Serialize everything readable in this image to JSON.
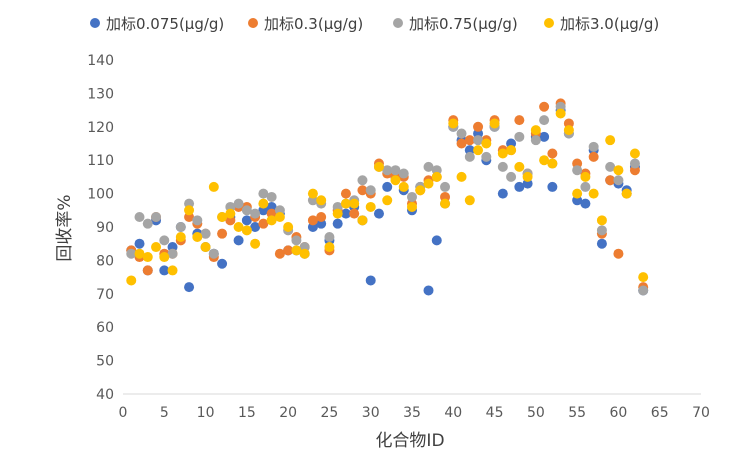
{
  "chart_data": {
    "type": "scatter",
    "title": "",
    "xlabel": "化合物ID",
    "ylabel": "回收率%",
    "xlim": [
      0,
      70
    ],
    "ylim": [
      40,
      140
    ],
    "xticks": [
      0,
      5,
      10,
      15,
      20,
      25,
      30,
      35,
      40,
      45,
      50,
      55,
      60,
      65,
      70
    ],
    "yticks": [
      40,
      50,
      60,
      70,
      80,
      90,
      100,
      110,
      120,
      130,
      140
    ],
    "grid": false,
    "legend_position": "top",
    "series": [
      {
        "name": "加标0.075(μg/g)",
        "color": "#4472C4",
        "x": [
          1,
          2,
          3,
          4,
          5,
          6,
          7,
          8,
          9,
          10,
          11,
          12,
          13,
          14,
          15,
          16,
          17,
          18,
          19,
          20,
          21,
          22,
          23,
          24,
          25,
          26,
          27,
          28,
          29,
          30,
          31,
          32,
          33,
          34,
          35,
          36,
          37,
          38,
          39,
          40,
          41,
          42,
          43,
          44,
          45,
          46,
          47,
          48,
          49,
          50,
          51,
          52,
          53,
          54,
          55,
          56,
          57,
          58,
          59,
          60,
          61,
          62,
          63
        ],
        "y": [
          83,
          85,
          77,
          92,
          77,
          84,
          90,
          72,
          88,
          84,
          82,
          79,
          93,
          86,
          92,
          90,
          95,
          96,
          94,
          83,
          83,
          82,
          90,
          91,
          86,
          91,
          94,
          96,
          92,
          74,
          94,
          102,
          105,
          101,
          95,
          102,
          71,
          86,
          97,
          120,
          116,
          113,
          118,
          110,
          120,
          100,
          115,
          102,
          103,
          117,
          117,
          102,
          125,
          118,
          98,
          97,
          113,
          85,
          104,
          103,
          101,
          108,
          71
        ]
      },
      {
        "name": "加标0.3(μg/g)",
        "color": "#ED7D31",
        "x": [
          1,
          2,
          3,
          4,
          5,
          6,
          7,
          8,
          9,
          10,
          11,
          12,
          13,
          14,
          15,
          16,
          17,
          18,
          19,
          20,
          21,
          22,
          23,
          24,
          25,
          26,
          27,
          28,
          29,
          30,
          31,
          32,
          33,
          34,
          35,
          36,
          37,
          38,
          39,
          40,
          41,
          42,
          43,
          44,
          45,
          46,
          47,
          48,
          49,
          50,
          51,
          52,
          53,
          54,
          55,
          56,
          57,
          58,
          59,
          60,
          61,
          62,
          63
        ],
        "y": [
          83,
          81,
          77,
          93,
          82,
          82,
          86,
          93,
          91,
          88,
          81,
          88,
          92,
          96,
          96,
          93,
          91,
          94,
          82,
          83,
          87,
          84,
          92,
          93,
          83,
          95,
          100,
          94,
          101,
          100,
          109,
          106,
          105,
          105,
          97,
          101,
          104,
          105,
          99,
          122,
          115,
          116,
          120,
          116,
          122,
          113,
          113,
          122,
          106,
          118,
          126,
          112,
          127,
          121,
          109,
          106,
          111,
          88,
          104,
          82,
          100,
          107,
          72
        ]
      },
      {
        "name": "加标0.75(μg/g)",
        "color": "#A5A5A5",
        "x": [
          1,
          2,
          3,
          4,
          5,
          6,
          7,
          8,
          9,
          10,
          11,
          12,
          13,
          14,
          15,
          16,
          17,
          18,
          19,
          20,
          21,
          22,
          23,
          24,
          25,
          26,
          27,
          28,
          29,
          30,
          31,
          32,
          33,
          34,
          35,
          36,
          37,
          38,
          39,
          40,
          41,
          42,
          43,
          44,
          45,
          46,
          47,
          48,
          49,
          50,
          51,
          52,
          53,
          54,
          55,
          56,
          57,
          58,
          59,
          60,
          61,
          62,
          63
        ],
        "y": [
          82,
          93,
          91,
          93,
          86,
          82,
          90,
          97,
          92,
          88,
          82,
          93,
          96,
          97,
          95,
          94,
          100,
          99,
          95,
          89,
          86,
          84,
          98,
          97,
          87,
          96,
          97,
          98,
          104,
          101,
          108,
          107,
          107,
          106,
          99,
          102,
          108,
          107,
          102,
          120,
          118,
          111,
          116,
          111,
          120,
          108,
          105,
          117,
          106,
          116,
          122,
          109,
          126,
          118,
          107,
          102,
          114,
          89,
          108,
          104,
          100,
          109,
          71
        ]
      },
      {
        "name": "加标3.0(μg/g)",
        "color": "#FFC000",
        "x": [
          1,
          2,
          3,
          4,
          5,
          6,
          7,
          8,
          9,
          10,
          11,
          12,
          13,
          14,
          15,
          16,
          17,
          18,
          19,
          20,
          21,
          22,
          23,
          24,
          25,
          26,
          27,
          28,
          29,
          30,
          31,
          32,
          33,
          34,
          35,
          36,
          37,
          38,
          39,
          40,
          41,
          42,
          43,
          44,
          45,
          46,
          47,
          48,
          49,
          50,
          51,
          52,
          53,
          54,
          55,
          56,
          57,
          58,
          59,
          60,
          61,
          62,
          63
        ],
        "y": [
          74,
          82,
          81,
          84,
          81,
          77,
          87,
          95,
          87,
          84,
          102,
          93,
          94,
          90,
          89,
          85,
          97,
          92,
          93,
          90,
          83,
          82,
          100,
          98,
          84,
          94,
          97,
          97,
          92,
          96,
          108,
          98,
          104,
          102,
          96,
          101,
          103,
          105,
          97,
          121,
          105,
          98,
          113,
          115,
          121,
          112,
          113,
          108,
          105,
          119,
          110,
          109,
          124,
          119,
          100,
          105,
          100,
          92,
          116,
          107,
          100,
          112,
          75
        ]
      }
    ]
  }
}
